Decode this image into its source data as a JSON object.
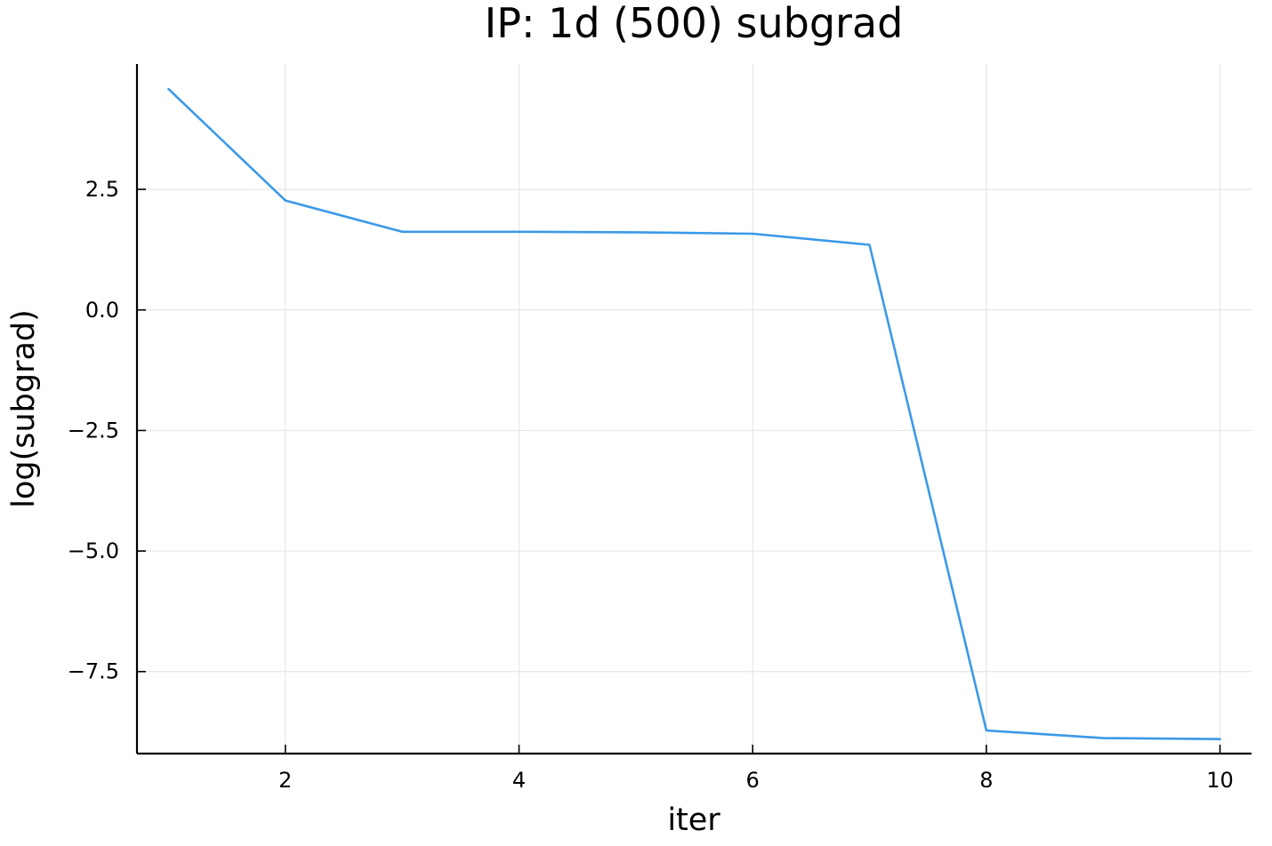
{
  "chart_data": {
    "type": "line",
    "title": "IP: 1d (500) subgrad",
    "xlabel": "iter",
    "ylabel": "log(subgrad)",
    "xlim": [
      0.73,
      10.27
    ],
    "ylim": [
      -9.2,
      5.1
    ],
    "xticks": [
      2,
      4,
      6,
      8,
      10
    ],
    "xtick_labels": [
      "2",
      "4",
      "6",
      "8",
      "10"
    ],
    "yticks": [
      -7.5,
      -5.0,
      -2.5,
      0.0,
      2.5
    ],
    "ytick_labels": [
      "−7.5",
      "−5.0",
      "−2.5",
      "0.0",
      "2.5"
    ],
    "grid": true,
    "legend": "none",
    "colors": {
      "series": "#3b99e8",
      "grid": "#e6e6e6",
      "axis": "#000000"
    },
    "series": [
      {
        "x": [
          1,
          2,
          3,
          4,
          5,
          6,
          7,
          8,
          9,
          10
        ],
        "values": [
          4.58,
          2.27,
          1.62,
          1.62,
          1.61,
          1.58,
          1.35,
          -8.72,
          -8.88,
          -8.9
        ]
      }
    ]
  }
}
